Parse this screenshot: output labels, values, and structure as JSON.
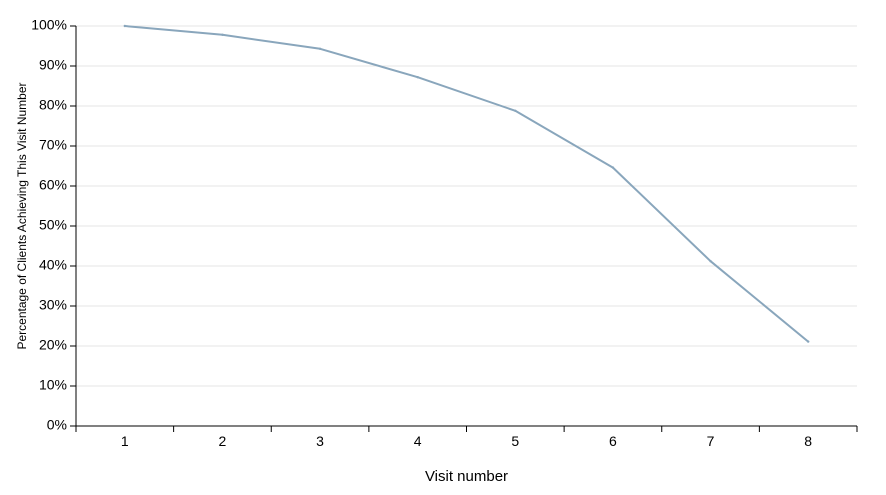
{
  "chart_data": {
    "type": "line",
    "x": [
      1,
      2,
      3,
      4,
      5,
      6,
      7,
      8
    ],
    "series": [
      {
        "values": [
          100,
          97.8,
          94.3,
          87.2,
          78.8,
          64.6,
          41.2,
          21.1
        ]
      }
    ],
    "xlabel": "Visit number",
    "ylabel": "Percentage of Clients Achieving This Visit Number",
    "ylim": [
      0,
      100
    ],
    "y_ticks": [
      "0%",
      "10%",
      "20%",
      "30%",
      "40%",
      "50%",
      "60%",
      "70%",
      "80%",
      "90%",
      "100%"
    ],
    "x_ticks": [
      "1",
      "2",
      "3",
      "4",
      "5",
      "6",
      "7",
      "8"
    ],
    "grid": true,
    "colors": {
      "line": "#89a6bc",
      "grid": "#e6e6e6",
      "axis": "#000000"
    }
  }
}
